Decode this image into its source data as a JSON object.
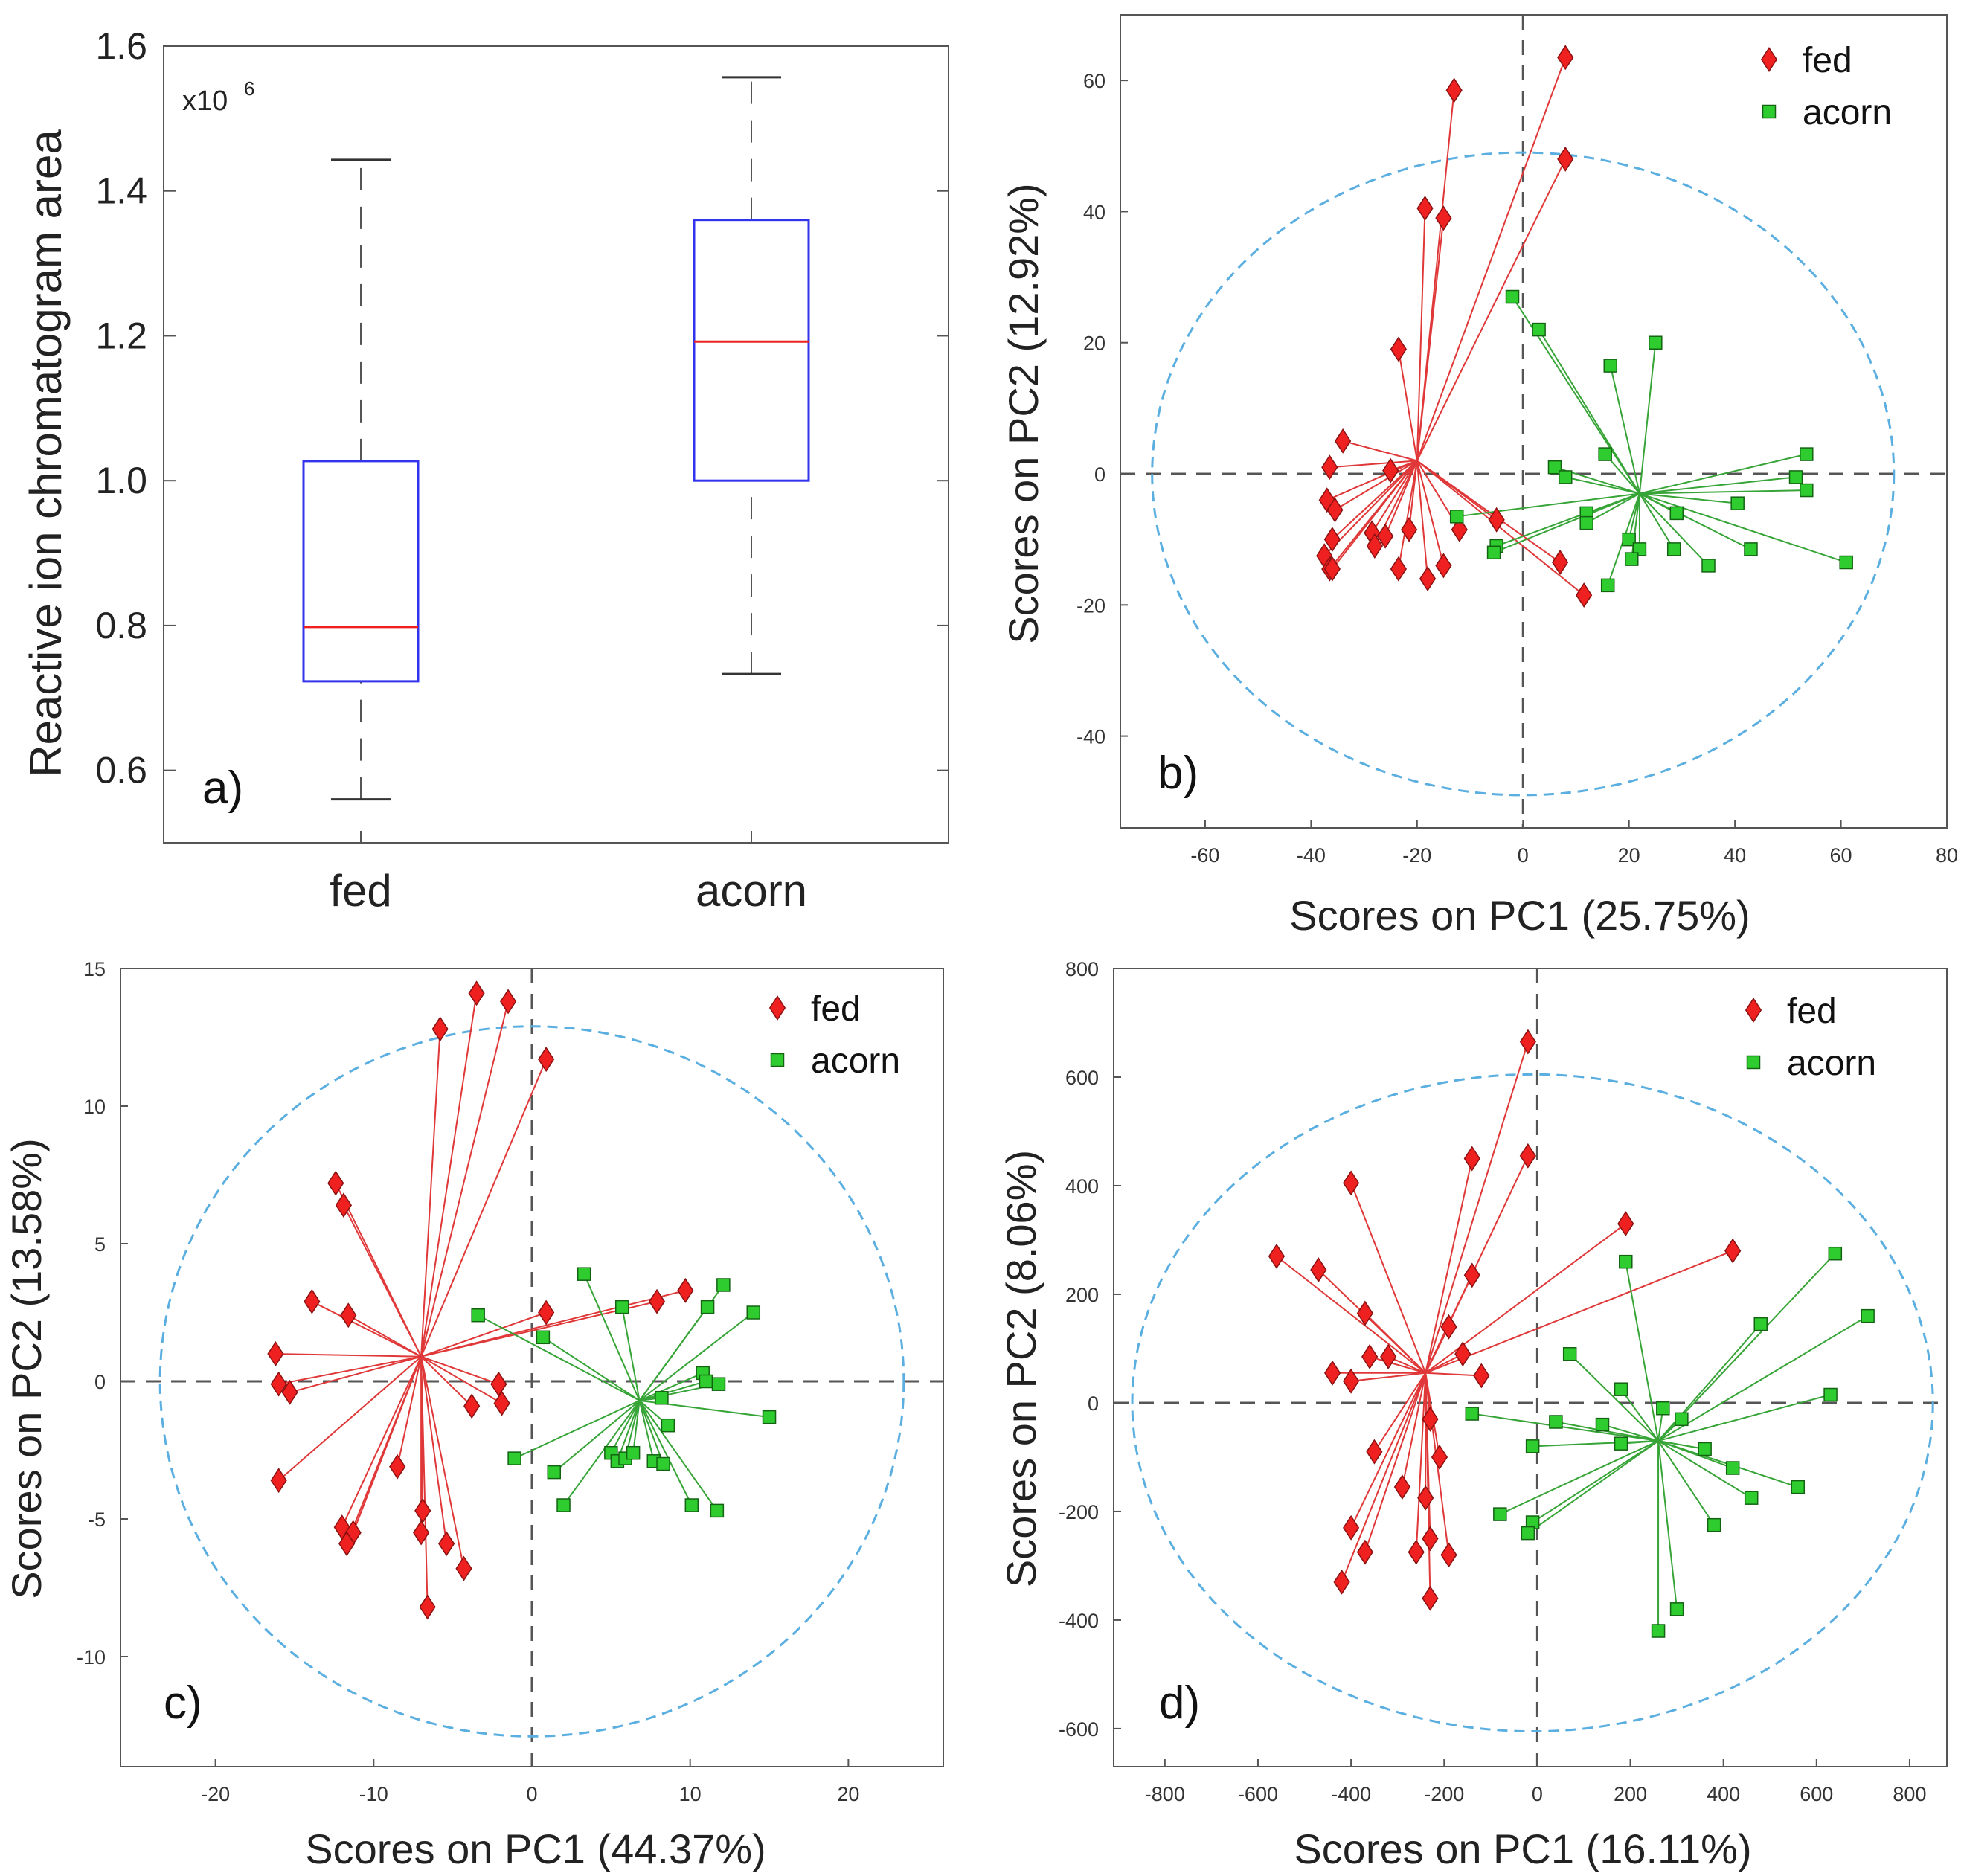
{
  "colors": {
    "fed_marker": "#ee2020",
    "fed_line": "#e03838",
    "acorn_marker": "#2ecc2e",
    "acorn_line": "#36a436",
    "ellipse": "#5aaee0",
    "box_outline": "#3333ee",
    "median": "#ee2020",
    "whisker": "#555555",
    "axis": "#555555"
  },
  "chart_data": [
    {
      "panel": "a)",
      "type": "box",
      "ylabel": "Reactive ion chromatogram area",
      "multiplier": "x10",
      "multiplier_exp": "6",
      "ylim": [
        0.5,
        1.6
      ],
      "yticks": [
        0.6,
        0.8,
        1.0,
        1.2,
        1.4,
        1.6
      ],
      "ytick_labels": [
        "0.6",
        "0.8",
        "1.0",
        "1.2",
        "1.4",
        "1.6"
      ],
      "categories": [
        "fed",
        "acorn"
      ],
      "boxes": [
        {
          "name": "fed",
          "min": 0.56,
          "q1": 0.723,
          "median": 0.798,
          "q3": 1.027,
          "max": 1.443
        },
        {
          "name": "acorn",
          "min": 0.733,
          "q1": 1.0,
          "median": 1.192,
          "q3": 1.36,
          "max": 1.557
        }
      ]
    },
    {
      "panel": "b)",
      "type": "scatter",
      "xlabel": "Scores on PC1 (25.75%)",
      "ylabel": "Scores on PC2 (12.92%)",
      "xlim": [
        -76,
        80
      ],
      "ylim": [
        -54,
        70
      ],
      "xticks": [
        -60,
        -40,
        -20,
        0,
        20,
        40,
        60,
        80
      ],
      "xtick_labels": [
        "-60",
        "-40",
        "-20",
        "0",
        "20",
        "40",
        "60",
        "80"
      ],
      "yticks": [
        -40,
        -20,
        0,
        20,
        40,
        60
      ],
      "ytick_labels": [
        "-40",
        "-20",
        "0",
        "20",
        "40",
        "60"
      ],
      "ellipse": {
        "cx": 0,
        "cy": 0,
        "rx": 70,
        "ry": 49
      },
      "legend": [
        "fed",
        "acorn"
      ],
      "series": [
        {
          "name": "fed",
          "centroid": [
            -20,
            2
          ],
          "points": [
            [
              -13,
              58.5
            ],
            [
              8,
              63.5
            ],
            [
              8,
              48
            ],
            [
              -18.5,
              40.5
            ],
            [
              -15,
              39
            ],
            [
              -23.5,
              19
            ],
            [
              -34,
              5
            ],
            [
              -36.5,
              1
            ],
            [
              -25,
              0.5
            ],
            [
              -37,
              -4
            ],
            [
              -35.5,
              -5.5
            ],
            [
              -36,
              -10
            ],
            [
              -37.5,
              -12.5
            ],
            [
              -36.5,
              -14.5
            ],
            [
              -36,
              -14.5
            ],
            [
              -28.5,
              -9
            ],
            [
              -26,
              -9.5
            ],
            [
              -28,
              -11
            ],
            [
              -21.5,
              -8.5
            ],
            [
              -23.5,
              -14.5
            ],
            [
              -18,
              -16
            ],
            [
              -15,
              -14
            ],
            [
              -12,
              -8.5
            ],
            [
              -5,
              -7
            ],
            [
              7,
              -13.5
            ],
            [
              11.5,
              -18.5
            ]
          ]
        },
        {
          "name": "acorn",
          "centroid": [
            22,
            -3
          ],
          "points": [
            [
              -2,
              27
            ],
            [
              3,
              22
            ],
            [
              16.5,
              16.5
            ],
            [
              25,
              20
            ],
            [
              15.5,
              3
            ],
            [
              6,
              1
            ],
            [
              8,
              -0.5
            ],
            [
              53.5,
              3
            ],
            [
              51.5,
              -0.5
            ],
            [
              53.5,
              -2.5
            ],
            [
              40.5,
              -4.5
            ],
            [
              29,
              -6
            ],
            [
              12,
              -6
            ],
            [
              12,
              -7.5
            ],
            [
              -12.5,
              -6.5
            ],
            [
              -5,
              -11
            ],
            [
              -5.5,
              -12
            ],
            [
              20,
              -10
            ],
            [
              22,
              -11.5
            ],
            [
              20.5,
              -13
            ],
            [
              28.5,
              -11.5
            ],
            [
              43,
              -11.5
            ],
            [
              35,
              -14
            ],
            [
              16,
              -17
            ],
            [
              61,
              -13.5
            ]
          ]
        }
      ]
    },
    {
      "panel": "c)",
      "type": "scatter",
      "xlabel": "Scores on PC1 (44.37%)",
      "ylabel": "Scores on PC2 (13.58%)",
      "xlim": [
        -26,
        26
      ],
      "ylim": [
        -14,
        15
      ],
      "xticks": [
        -20,
        -10,
        0,
        10,
        20
      ],
      "xtick_labels": [
        "-20",
        "-10",
        "0",
        "10",
        "20"
      ],
      "yticks": [
        -10,
        -5,
        0,
        5,
        10,
        15
      ],
      "ytick_labels": [
        "-10",
        "-5",
        "0",
        "5",
        "10",
        "15"
      ],
      "ellipse": {
        "cx": 0,
        "cy": 0,
        "rx": 23.5,
        "ry": 12.9
      },
      "legend": [
        "fed",
        "acorn"
      ],
      "series": [
        {
          "name": "fed",
          "centroid": [
            -7,
            0.9
          ],
          "points": [
            [
              -3.5,
              14.1
            ],
            [
              -1.5,
              13.8
            ],
            [
              -5.8,
              12.8
            ],
            [
              0.9,
              11.7
            ],
            [
              -12.4,
              7.2
            ],
            [
              -11.9,
              6.4
            ],
            [
              -13.9,
              2.9
            ],
            [
              -11.6,
              2.4
            ],
            [
              -16.2,
              1.0
            ],
            [
              -16.0,
              -0.1
            ],
            [
              -15.3,
              -0.4
            ],
            [
              -2.1,
              -0.1
            ],
            [
              -1.9,
              -0.8
            ],
            [
              -3.8,
              -0.9
            ],
            [
              0.9,
              2.5
            ],
            [
              7.9,
              2.9
            ],
            [
              9.7,
              3.3
            ],
            [
              -8.5,
              -3.1
            ],
            [
              -16.0,
              -3.6
            ],
            [
              -12.0,
              -5.3
            ],
            [
              -11.3,
              -5.5
            ],
            [
              -11.7,
              -5.9
            ],
            [
              -6.9,
              -4.7
            ],
            [
              -7.0,
              -5.5
            ],
            [
              -5.4,
              -5.9
            ],
            [
              -4.3,
              -6.8
            ],
            [
              -6.6,
              -8.2
            ]
          ]
        },
        {
          "name": "acorn",
          "centroid": [
            6.8,
            -0.7
          ],
          "points": [
            [
              -3.4,
              2.4
            ],
            [
              3.3,
              3.9
            ],
            [
              5.7,
              2.7
            ],
            [
              12.1,
              3.5
            ],
            [
              11.1,
              2.7
            ],
            [
              14.0,
              2.5
            ],
            [
              0.7,
              1.6
            ],
            [
              10.8,
              0.3
            ],
            [
              11.0,
              0.0
            ],
            [
              11.8,
              -0.1
            ],
            [
              8.2,
              -0.6
            ],
            [
              8.6,
              -1.6
            ],
            [
              15.0,
              -1.3
            ],
            [
              -1.1,
              -2.8
            ],
            [
              1.4,
              -3.3
            ],
            [
              5.0,
              -2.6
            ],
            [
              5.4,
              -2.9
            ],
            [
              5.9,
              -2.8
            ],
            [
              6.4,
              -2.6
            ],
            [
              7.7,
              -2.9
            ],
            [
              8.3,
              -3.0
            ],
            [
              2.0,
              -4.5
            ],
            [
              10.1,
              -4.5
            ],
            [
              11.7,
              -4.7
            ]
          ]
        }
      ]
    },
    {
      "panel": "d)",
      "type": "scatter",
      "xlabel": "Scores on PC1 (16.11%)",
      "ylabel": "Scores on PC2 (8.06%)",
      "xlim": [
        -910,
        880
      ],
      "ylim": [
        -670,
        800
      ],
      "xticks": [
        -800,
        -600,
        -400,
        -200,
        0,
        200,
        400,
        600,
        800
      ],
      "xtick_labels": [
        "-800",
        "-600",
        "-400",
        "-200",
        "0",
        "200",
        "400",
        "600",
        "800"
      ],
      "yticks": [
        -600,
        -400,
        -200,
        0,
        200,
        400,
        600,
        800
      ],
      "ytick_labels": [
        "-600",
        "-400",
        "-200",
        "0",
        "200",
        "400",
        "600",
        "800"
      ],
      "ellipse": {
        "cx": -10,
        "cy": 0,
        "rx": 860,
        "ry": 605
      },
      "legend": [
        "fed",
        "acorn"
      ],
      "series": [
        {
          "name": "fed",
          "centroid": [
            -240,
            55
          ],
          "points": [
            [
              -20,
              665
            ],
            [
              -20,
              455
            ],
            [
              -140,
              450
            ],
            [
              -400,
              405
            ],
            [
              -560,
              270
            ],
            [
              -470,
              245
            ],
            [
              -370,
              165
            ],
            [
              -140,
              235
            ],
            [
              190,
              330
            ],
            [
              420,
              280
            ],
            [
              -190,
              140
            ],
            [
              -160,
              90
            ],
            [
              -120,
              50
            ],
            [
              -360,
              85
            ],
            [
              -320,
              85
            ],
            [
              -440,
              55
            ],
            [
              -400,
              40
            ],
            [
              -230,
              -30
            ],
            [
              -350,
              -90
            ],
            [
              -210,
              -100
            ],
            [
              -290,
              -155
            ],
            [
              -240,
              -175
            ],
            [
              -400,
              -230
            ],
            [
              -370,
              -275
            ],
            [
              -230,
              -250
            ],
            [
              -260,
              -275
            ],
            [
              -190,
              -280
            ],
            [
              -420,
              -330
            ],
            [
              -230,
              -360
            ]
          ]
        },
        {
          "name": "acorn",
          "centroid": [
            260,
            -70
          ],
          "points": [
            [
              190,
              260
            ],
            [
              640,
              275
            ],
            [
              70,
              90
            ],
            [
              480,
              145
            ],
            [
              710,
              160
            ],
            [
              180,
              25
            ],
            [
              270,
              -10
            ],
            [
              310,
              -30
            ],
            [
              630,
              15
            ],
            [
              -140,
              -20
            ],
            [
              40,
              -35
            ],
            [
              140,
              -40
            ],
            [
              180,
              -75
            ],
            [
              -10,
              -80
            ],
            [
              360,
              -85
            ],
            [
              420,
              -120
            ],
            [
              460,
              -175
            ],
            [
              560,
              -155
            ],
            [
              380,
              -225
            ],
            [
              -80,
              -205
            ],
            [
              -10,
              -220
            ],
            [
              -20,
              -240
            ],
            [
              300,
              -380
            ],
            [
              260,
              -420
            ]
          ]
        }
      ]
    }
  ]
}
